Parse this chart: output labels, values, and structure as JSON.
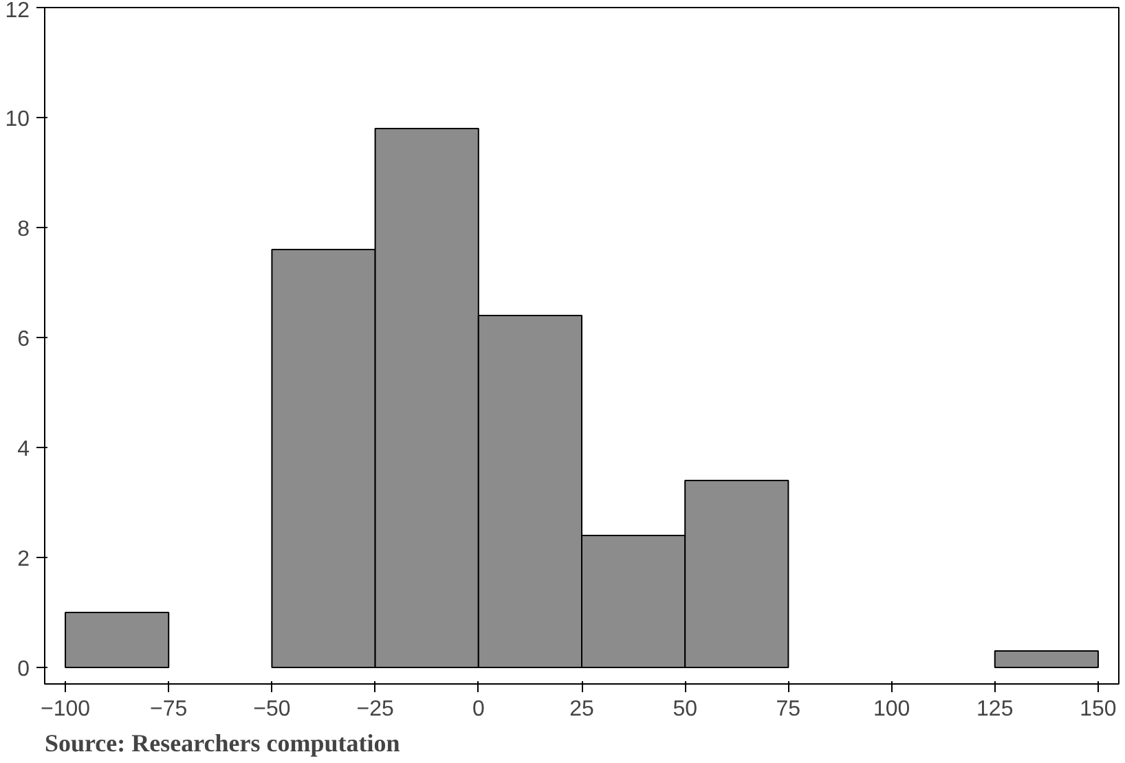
{
  "chart_data": {
    "type": "histogram",
    "bins": [
      -100,
      -75,
      -50,
      -25,
      0,
      25,
      50,
      75,
      100,
      125,
      150
    ],
    "values": [
      1,
      0,
      7.6,
      9.8,
      6.4,
      2.4,
      3.4,
      0,
      0,
      0.3
    ],
    "color": "#8c8c8c",
    "xlim": [
      -105,
      155
    ],
    "ylim": [
      -0.3,
      12
    ],
    "xticks": [
      -100,
      -75,
      -50,
      -25,
      0,
      25,
      50,
      75,
      100,
      125,
      150
    ],
    "yticks": [
      0,
      2,
      4,
      6,
      8,
      10,
      12
    ],
    "grid": false,
    "annotations": [
      "Source: Researchers computation"
    ]
  }
}
